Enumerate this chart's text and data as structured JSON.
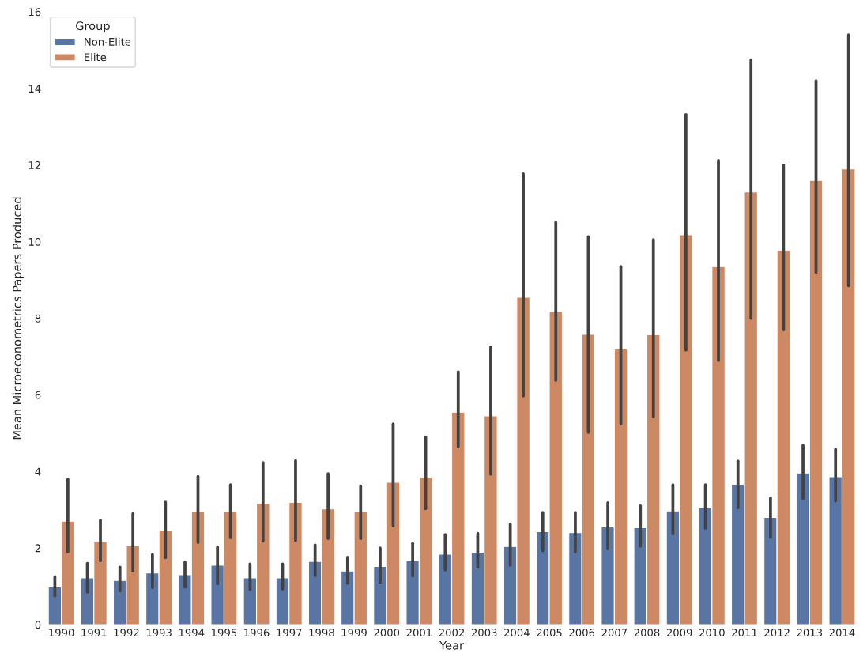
{
  "chart_data": {
    "type": "bar",
    "xlabel": "Year",
    "ylabel": "Mean Microeconometrics Papers Produced",
    "legend_title": "Group",
    "categories": [
      "1990",
      "1991",
      "1992",
      "1993",
      "1994",
      "1995",
      "1996",
      "1997",
      "1998",
      "1999",
      "2000",
      "2001",
      "2002",
      "2003",
      "2004",
      "2005",
      "2006",
      "2007",
      "2008",
      "2009",
      "2010",
      "2011",
      "2012",
      "2013",
      "2014"
    ],
    "series": [
      {
        "name": "Non-Elite",
        "color": "#5975a4",
        "values": [
          0.98,
          1.22,
          1.15,
          1.35,
          1.3,
          1.55,
          1.22,
          1.22,
          1.65,
          1.4,
          1.52,
          1.67,
          1.84,
          1.89,
          2.04,
          2.43,
          2.4,
          2.55,
          2.53,
          2.97,
          3.05,
          3.66,
          2.8,
          3.96,
          3.86
        ],
        "errors": [
          [
            0.75,
            1.25
          ],
          [
            0.85,
            1.6
          ],
          [
            0.88,
            1.5
          ],
          [
            0.97,
            1.83
          ],
          [
            0.98,
            1.63
          ],
          [
            1.07,
            2.03
          ],
          [
            0.92,
            1.58
          ],
          [
            0.93,
            1.58
          ],
          [
            1.28,
            2.08
          ],
          [
            1.08,
            1.76
          ],
          [
            1.1,
            2.0
          ],
          [
            1.27,
            2.12
          ],
          [
            1.43,
            2.35
          ],
          [
            1.5,
            2.38
          ],
          [
            1.55,
            2.63
          ],
          [
            1.93,
            2.93
          ],
          [
            1.9,
            2.93
          ],
          [
            2.0,
            3.18
          ],
          [
            2.05,
            3.1
          ],
          [
            2.37,
            3.65
          ],
          [
            2.52,
            3.65
          ],
          [
            3.05,
            4.27
          ],
          [
            2.28,
            3.31
          ],
          [
            3.3,
            4.68
          ],
          [
            3.23,
            4.58
          ]
        ]
      },
      {
        "name": "Elite",
        "color": "#cc8963",
        "values": [
          2.7,
          2.18,
          2.06,
          2.45,
          2.95,
          2.95,
          3.17,
          3.19,
          3.02,
          2.95,
          3.72,
          3.85,
          5.55,
          5.45,
          8.55,
          8.17,
          7.58,
          7.2,
          7.57,
          10.18,
          9.35,
          11.3,
          9.77,
          11.6,
          11.9
        ],
        "errors": [
          [
            1.9,
            3.8
          ],
          [
            1.67,
            2.73
          ],
          [
            1.4,
            2.9
          ],
          [
            1.75,
            3.2
          ],
          [
            2.15,
            3.87
          ],
          [
            2.27,
            3.65
          ],
          [
            2.18,
            4.23
          ],
          [
            2.2,
            4.28
          ],
          [
            2.25,
            3.94
          ],
          [
            2.25,
            3.62
          ],
          [
            2.58,
            5.24
          ],
          [
            3.03,
            4.9
          ],
          [
            4.65,
            6.6
          ],
          [
            3.93,
            7.25
          ],
          [
            5.97,
            11.77
          ],
          [
            6.38,
            10.5
          ],
          [
            5.02,
            10.13
          ],
          [
            5.25,
            9.35
          ],
          [
            5.42,
            10.05
          ],
          [
            7.17,
            13.32
          ],
          [
            6.9,
            12.12
          ],
          [
            8.0,
            14.75
          ],
          [
            7.7,
            12.0
          ],
          [
            9.2,
            14.2
          ],
          [
            8.85,
            15.4
          ]
        ]
      }
    ],
    "ylim": [
      0,
      16
    ],
    "yticks": [
      0,
      2,
      4,
      6,
      8,
      10,
      12,
      14,
      16
    ],
    "grid": false,
    "legend": "top left"
  }
}
